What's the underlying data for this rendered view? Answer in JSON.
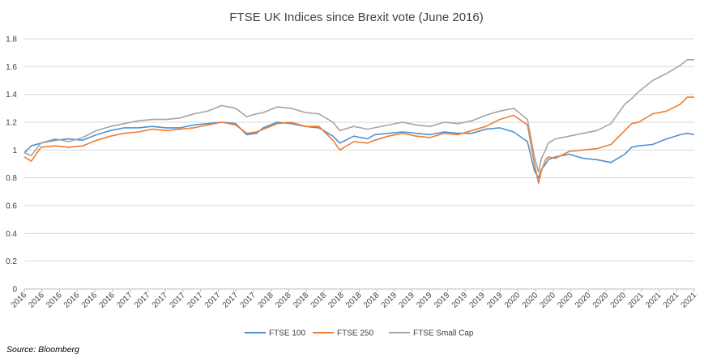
{
  "chart_data": {
    "type": "line",
    "title": "FTSE UK Indices since Brexit vote (June 2016)",
    "xlabel": "",
    "ylabel": "",
    "ylim": [
      0,
      1.8
    ],
    "yticks": [
      0,
      0.2,
      0.4,
      0.6,
      0.8,
      1,
      1.2,
      1.4,
      1.6,
      1.8
    ],
    "ytick_labels": [
      "0",
      "0.2",
      "0.4",
      "0.6",
      "0.8",
      "1",
      "1.2",
      "1.4",
      "1.6",
      "1.8"
    ],
    "xlim": [
      2016.48,
      2021.3
    ],
    "xtick_labels": [
      "2016",
      "2016",
      "2016",
      "2016",
      "2016",
      "2016",
      "2017",
      "2017",
      "2017",
      "2017",
      "2017",
      "2017",
      "2017",
      "2017",
      "2018",
      "2018",
      "2018",
      "2018",
      "2018",
      "2018",
      "2018",
      "2019",
      "2019",
      "2019",
      "2019",
      "2019",
      "2019",
      "2019",
      "2020",
      "2020",
      "2020",
      "2020",
      "2020",
      "2020",
      "2020",
      "2021",
      "2021",
      "2021",
      "2021"
    ],
    "grid": true,
    "legend_position": "bottom",
    "x": [
      2016.48,
      2016.53,
      2016.6,
      2016.7,
      2016.8,
      2016.9,
      2017.0,
      2017.1,
      2017.2,
      2017.3,
      2017.4,
      2017.5,
      2017.6,
      2017.7,
      2017.8,
      2017.9,
      2018.0,
      2018.08,
      2018.15,
      2018.2,
      2018.3,
      2018.4,
      2018.5,
      2018.6,
      2018.7,
      2018.75,
      2018.85,
      2018.95,
      2019.0,
      2019.1,
      2019.2,
      2019.3,
      2019.4,
      2019.5,
      2019.6,
      2019.7,
      2019.8,
      2019.9,
      2020.0,
      2020.1,
      2020.15,
      2020.18,
      2020.2,
      2020.23,
      2020.25,
      2020.3,
      2020.4,
      2020.5,
      2020.6,
      2020.7,
      2020.8,
      2020.85,
      2020.9,
      2021.0,
      2021.1,
      2021.2,
      2021.25,
      2021.3
    ],
    "series": [
      {
        "name": "FTSE 100",
        "color": "#4e90d2",
        "values": [
          0.98,
          1.03,
          1.05,
          1.07,
          1.08,
          1.07,
          1.11,
          1.14,
          1.16,
          1.16,
          1.17,
          1.16,
          1.16,
          1.18,
          1.19,
          1.2,
          1.19,
          1.11,
          1.12,
          1.16,
          1.2,
          1.19,
          1.17,
          1.16,
          1.1,
          1.05,
          1.1,
          1.08,
          1.11,
          1.12,
          1.13,
          1.12,
          1.11,
          1.13,
          1.12,
          1.12,
          1.15,
          1.16,
          1.13,
          1.06,
          0.85,
          0.8,
          0.86,
          0.9,
          0.93,
          0.95,
          0.97,
          0.94,
          0.93,
          0.91,
          0.97,
          1.02,
          1.03,
          1.04,
          1.08,
          1.11,
          1.12,
          1.11
        ]
      },
      {
        "name": "FTSE 250",
        "color": "#ed7d31",
        "values": [
          0.95,
          0.92,
          1.02,
          1.03,
          1.02,
          1.03,
          1.07,
          1.1,
          1.12,
          1.13,
          1.15,
          1.14,
          1.15,
          1.16,
          1.18,
          1.2,
          1.18,
          1.12,
          1.13,
          1.15,
          1.19,
          1.2,
          1.17,
          1.17,
          1.07,
          1.0,
          1.06,
          1.05,
          1.07,
          1.1,
          1.12,
          1.1,
          1.09,
          1.12,
          1.11,
          1.14,
          1.17,
          1.22,
          1.25,
          1.18,
          0.9,
          0.76,
          0.85,
          0.93,
          0.95,
          0.94,
          0.99,
          1.0,
          1.01,
          1.04,
          1.14,
          1.19,
          1.2,
          1.26,
          1.28,
          1.33,
          1.38,
          1.38
        ]
      },
      {
        "name": "FTSE Small Cap",
        "color": "#a5a5a5",
        "values": [
          0.98,
          0.96,
          1.05,
          1.08,
          1.06,
          1.09,
          1.14,
          1.17,
          1.19,
          1.21,
          1.22,
          1.22,
          1.23,
          1.26,
          1.28,
          1.32,
          1.3,
          1.24,
          1.26,
          1.27,
          1.31,
          1.3,
          1.27,
          1.26,
          1.2,
          1.14,
          1.17,
          1.15,
          1.16,
          1.18,
          1.2,
          1.18,
          1.17,
          1.2,
          1.19,
          1.21,
          1.25,
          1.28,
          1.3,
          1.22,
          0.95,
          0.84,
          0.94,
          1.0,
          1.05,
          1.08,
          1.1,
          1.12,
          1.14,
          1.19,
          1.33,
          1.37,
          1.42,
          1.5,
          1.55,
          1.61,
          1.65,
          1.65
        ]
      }
    ]
  },
  "source_note": "Source: Bloomberg"
}
